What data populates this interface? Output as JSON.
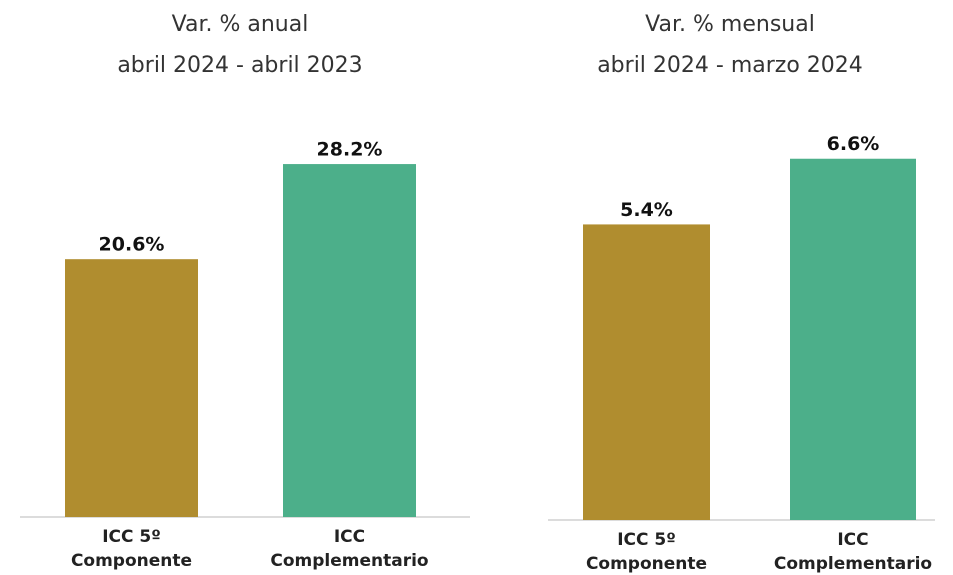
{
  "chart_data": [
    {
      "type": "bar",
      "title": "Var. % anual",
      "subtitle": "abril 2024 - abril 2023",
      "categories": [
        "ICC 5º Componente",
        "ICC Complementario"
      ],
      "values": [
        20.6,
        28.2
      ],
      "value_labels": [
        "20.6%",
        "28.2%"
      ],
      "colors": [
        "#b08d2f",
        "#4caf8a"
      ],
      "ylim": [
        0,
        33
      ]
    },
    {
      "type": "bar",
      "title": "Var. % mensual",
      "subtitle": "abril 2024 - marzo 2024",
      "categories": [
        "ICC 5º Componente",
        "ICC Complementario"
      ],
      "values": [
        5.4,
        6.6
      ],
      "value_labels": [
        "5.4%",
        "6.6%"
      ],
      "colors": [
        "#b08d2f",
        "#4caf8a"
      ],
      "ylim": [
        0,
        7.6
      ]
    }
  ]
}
